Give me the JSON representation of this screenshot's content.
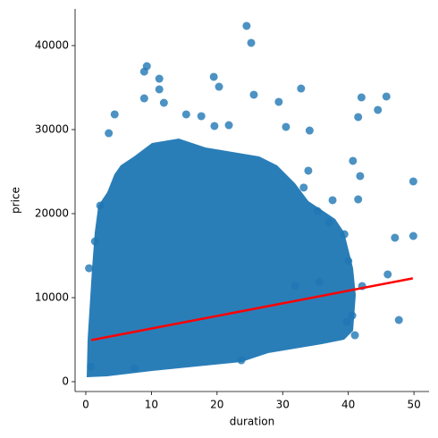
{
  "chart_data": {
    "type": "scatter",
    "x_label": "duration",
    "y_label": "price",
    "color": "#1f77b4",
    "xlim": [
      -1.63,
      52.3
    ],
    "ylim": [
      -1170,
      44360
    ],
    "xticks": [
      0,
      10,
      20,
      30,
      40,
      50
    ],
    "yticks": [
      0,
      10000,
      20000,
      30000,
      40000
    ],
    "x": [
      24.5,
      25.2,
      9.3,
      8.9,
      19.5,
      11.2,
      11.2,
      20.3,
      25.6,
      32.8,
      8.9,
      45.8,
      42,
      44.5,
      41.5,
      34.1,
      40.7,
      41.8,
      49.9,
      41.5,
      47.1,
      49.9,
      46,
      47.7,
      40.6,
      41,
      39.8,
      29.4,
      30.5,
      19.6,
      21.8,
      4.4,
      3.5,
      15.3,
      11.9,
      17.6,
      33.9,
      37.6,
      37.1,
      39.4,
      40,
      42.1,
      2.2,
      1.4,
      0.5,
      0.8,
      7.4,
      23.7,
      35.6,
      31.9,
      35.3,
      33.2
    ],
    "y": [
      42340,
      40320,
      37550,
      36900,
      36280,
      36060,
      34790,
      35100,
      34150,
      34890,
      33720,
      33940,
      33830,
      32340,
      31490,
      29890,
      26280,
      24470,
      23830,
      21700,
      17130,
      17340,
      12770,
      7340,
      7870,
      5530,
      7130,
      33300,
      30320,
      30430,
      30530,
      31810,
      29570,
      31810,
      33190,
      31600,
      25110,
      21600,
      18940,
      17550,
      14360,
      11380,
      20960,
      16700,
      13500,
      1800,
      1600,
      2550,
      11900,
      11400,
      20300,
      23100
    ],
    "regression": {
      "color": "#ff0000",
      "x": [
        0.83,
        49.83
      ],
      "y": [
        4950,
        12300
      ]
    }
  }
}
